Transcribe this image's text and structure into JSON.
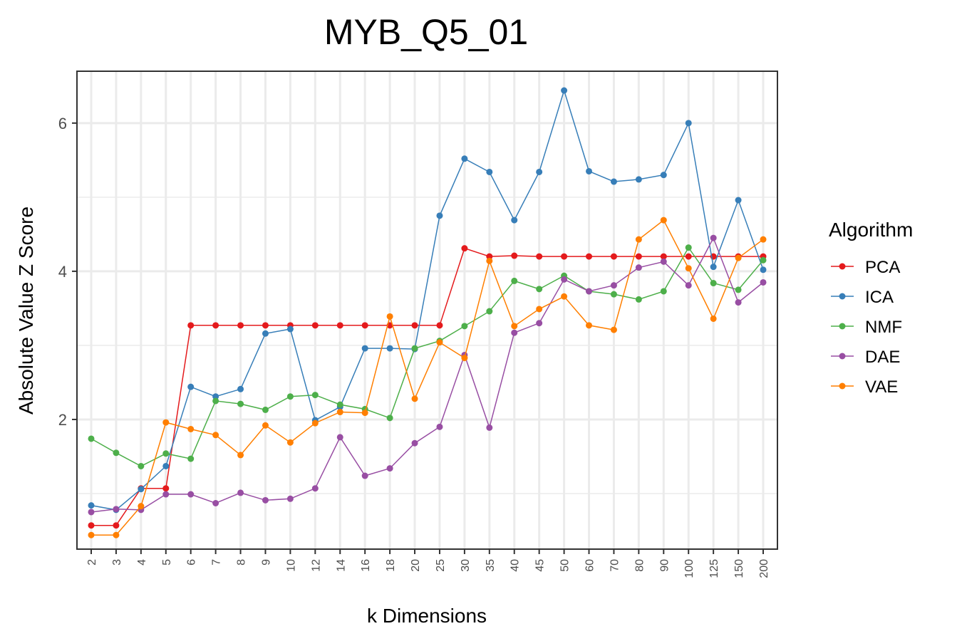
{
  "chart_data": {
    "type": "line",
    "title": "MYB_Q5_01",
    "xlabel": "k Dimensions",
    "ylabel": "Absolute Value Z Score",
    "categories": [
      "2",
      "3",
      "4",
      "5",
      "6",
      "7",
      "8",
      "9",
      "10",
      "12",
      "14",
      "16",
      "18",
      "20",
      "25",
      "30",
      "35",
      "40",
      "45",
      "50",
      "60",
      "70",
      "80",
      "90",
      "100",
      "125",
      "150",
      "200"
    ],
    "yticks": [
      2,
      4,
      6
    ],
    "ylim": [
      0.25,
      6.7
    ],
    "grid": true,
    "legend": {
      "title": "Algorithm",
      "position": "right"
    },
    "series": [
      {
        "name": "PCA",
        "color": "#e41a1c",
        "values": [
          0.57,
          0.57,
          1.07,
          1.07,
          3.27,
          3.27,
          3.27,
          3.27,
          3.27,
          3.27,
          3.27,
          3.27,
          3.27,
          3.27,
          3.27,
          4.31,
          4.2,
          4.21,
          4.2,
          4.2,
          4.2,
          4.2,
          4.2,
          4.2,
          4.2,
          4.2,
          4.2,
          4.2
        ]
      },
      {
        "name": "ICA",
        "color": "#377eb8",
        "values": [
          0.84,
          0.78,
          1.06,
          1.37,
          2.44,
          2.31,
          2.41,
          3.16,
          3.22,
          1.99,
          2.17,
          2.96,
          2.96,
          2.95,
          4.75,
          5.52,
          5.34,
          4.69,
          5.34,
          6.44,
          5.35,
          5.21,
          5.24,
          5.3,
          6.0,
          4.06,
          4.96,
          4.02
        ]
      },
      {
        "name": "NMF",
        "color": "#4daf4a",
        "values": [
          1.74,
          1.55,
          1.37,
          1.54,
          1.47,
          2.25,
          2.21,
          2.13,
          2.31,
          2.33,
          2.2,
          2.14,
          2.02,
          2.96,
          3.06,
          3.26,
          3.46,
          3.87,
          3.76,
          3.94,
          3.73,
          3.69,
          3.62,
          3.73,
          4.32,
          3.84,
          3.75,
          4.15
        ]
      },
      {
        "name": "DAE",
        "color": "#984ea3",
        "values": [
          0.75,
          0.79,
          0.78,
          0.99,
          0.99,
          0.87,
          1.01,
          0.91,
          0.93,
          1.07,
          1.76,
          1.24,
          1.34,
          1.68,
          1.9,
          2.87,
          1.89,
          3.17,
          3.3,
          3.89,
          3.73,
          3.81,
          4.05,
          4.13,
          3.81,
          4.45,
          3.58,
          3.85
        ]
      },
      {
        "name": "VAE",
        "color": "#ff7f00",
        "values": [
          0.44,
          0.44,
          0.83,
          1.96,
          1.87,
          1.79,
          1.52,
          1.92,
          1.69,
          1.95,
          2.1,
          2.09,
          3.39,
          2.28,
          3.04,
          2.83,
          4.14,
          3.26,
          3.49,
          3.66,
          3.27,
          3.21,
          4.43,
          4.69,
          4.04,
          3.36,
          4.18,
          4.43
        ]
      }
    ]
  }
}
